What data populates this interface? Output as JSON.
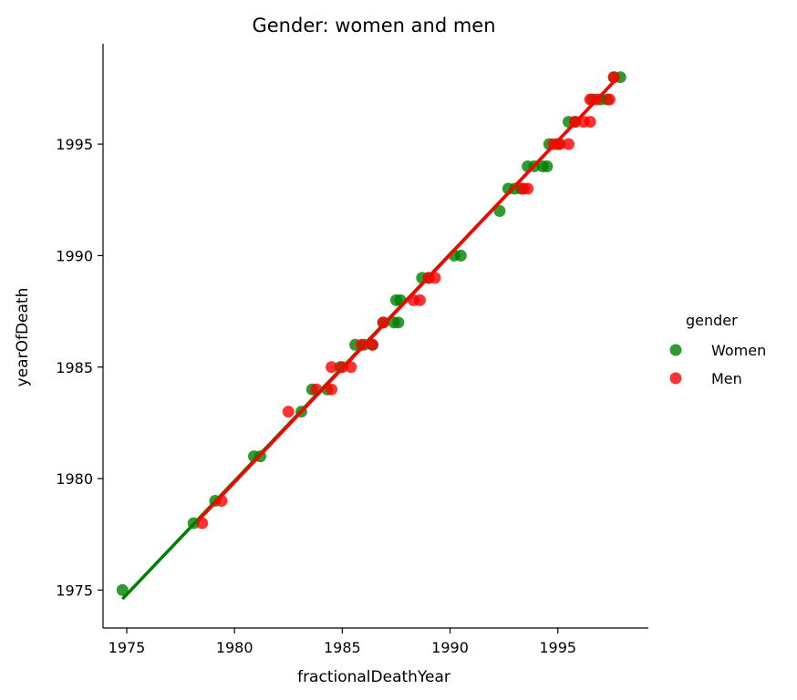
{
  "chart_data": {
    "type": "scatter",
    "title": "Gender: women and men",
    "xlabel": "fractionalDeathYear",
    "ylabel": "yearOfDeath",
    "xlim": [
      1973.9,
      1999.2
    ],
    "ylim": [
      1973.3,
      1999.5
    ],
    "xticks": [
      1975,
      1980,
      1985,
      1990,
      1995
    ],
    "yticks": [
      1975,
      1980,
      1985,
      1990,
      1995
    ],
    "grid": false,
    "legend": {
      "title": "gender",
      "placement": "right"
    },
    "series": [
      {
        "name": "Women",
        "color": "#008000",
        "points": [
          [
            1974.8,
            1975
          ],
          [
            1978.1,
            1978
          ],
          [
            1979.1,
            1979
          ],
          [
            1980.9,
            1981
          ],
          [
            1981.2,
            1981
          ],
          [
            1983.1,
            1983
          ],
          [
            1983.6,
            1984
          ],
          [
            1984.3,
            1984
          ],
          [
            1984.9,
            1985
          ],
          [
            1985.6,
            1986
          ],
          [
            1986.0,
            1986
          ],
          [
            1986.4,
            1986
          ],
          [
            1986.9,
            1987
          ],
          [
            1987.4,
            1987
          ],
          [
            1987.6,
            1987
          ],
          [
            1987.5,
            1988
          ],
          [
            1987.7,
            1988
          ],
          [
            1988.7,
            1989
          ],
          [
            1989.0,
            1989
          ],
          [
            1990.2,
            1990
          ],
          [
            1990.5,
            1990
          ],
          [
            1992.3,
            1992
          ],
          [
            1992.7,
            1993
          ],
          [
            1993.0,
            1993
          ],
          [
            1993.3,
            1993
          ],
          [
            1993.6,
            1994
          ],
          [
            1993.9,
            1994
          ],
          [
            1994.3,
            1994
          ],
          [
            1994.5,
            1994
          ],
          [
            1994.6,
            1995
          ],
          [
            1995.0,
            1995
          ],
          [
            1995.5,
            1996
          ],
          [
            1995.8,
            1996
          ],
          [
            1996.6,
            1997
          ],
          [
            1997.0,
            1997
          ],
          [
            1997.3,
            1997
          ],
          [
            1997.6,
            1998
          ],
          [
            1997.9,
            1998
          ]
        ],
        "fit": [
          [
            1974.8,
            1974.6
          ],
          [
            1997.8,
            1998.0
          ]
        ]
      },
      {
        "name": "Men",
        "color": "#ff0000",
        "points": [
          [
            1978.5,
            1978
          ],
          [
            1979.4,
            1979
          ],
          [
            1982.5,
            1983
          ],
          [
            1983.8,
            1984
          ],
          [
            1984.5,
            1984
          ],
          [
            1984.5,
            1985
          ],
          [
            1985.0,
            1985
          ],
          [
            1985.4,
            1985
          ],
          [
            1985.9,
            1986
          ],
          [
            1986.4,
            1986
          ],
          [
            1986.9,
            1987
          ],
          [
            1988.3,
            1988
          ],
          [
            1988.6,
            1988
          ],
          [
            1989.0,
            1989
          ],
          [
            1989.3,
            1989
          ],
          [
            1993.4,
            1993
          ],
          [
            1993.6,
            1993
          ],
          [
            1994.8,
            1995
          ],
          [
            1995.1,
            1995
          ],
          [
            1995.5,
            1995
          ],
          [
            1995.8,
            1996
          ],
          [
            1996.2,
            1996
          ],
          [
            1996.5,
            1996
          ],
          [
            1996.5,
            1997
          ],
          [
            1996.8,
            1997
          ],
          [
            1997.4,
            1997
          ],
          [
            1997.6,
            1998
          ]
        ],
        "fit": [
          [
            1978.3,
            1978.1
          ],
          [
            1997.8,
            1998.0
          ]
        ]
      }
    ]
  }
}
